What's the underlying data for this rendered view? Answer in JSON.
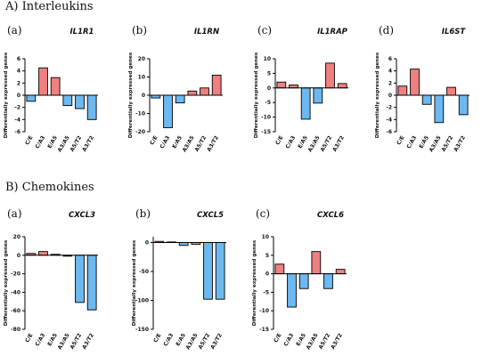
{
  "sections": [
    {
      "title": "A) Interleukins"
    },
    {
      "title": "B) Chemokines"
    }
  ],
  "colors": {
    "positive": "#f07f7f",
    "negative": "#6cb8f0",
    "stroke": "#000000"
  },
  "chart_data": [
    {
      "type": "bar",
      "section": "A) Interleukins",
      "panel": "(a)",
      "title": "IL1R1",
      "ylabel": "Differentially expressed genes",
      "categories": [
        "C/E",
        "C/A3",
        "E/A5",
        "A3/A5",
        "A5/T2",
        "A3/T2"
      ],
      "values": [
        -1,
        4.5,
        2.9,
        -1.7,
        -2.2,
        -4
      ],
      "ylim": [
        -6,
        6
      ],
      "yticks": [
        -6,
        -4,
        -2,
        0,
        2,
        4,
        6
      ]
    },
    {
      "type": "bar",
      "section": "A) Interleukins",
      "panel": "(b)",
      "title": "IL1RN",
      "ylabel": "Differentially expressed genes",
      "categories": [
        "C/E",
        "C/A3",
        "E/A5",
        "A3/A5",
        "A5/T2",
        "A3/T2"
      ],
      "values": [
        -1.5,
        -17.8,
        -4.2,
        2.3,
        4,
        11
      ],
      "ylim": [
        -20,
        20
      ],
      "yticks": [
        -20,
        -10,
        0,
        10,
        20
      ]
    },
    {
      "type": "bar",
      "section": "A) Interleukins",
      "panel": "(c)",
      "title": "IL1RAP",
      "ylabel": "Differentially expressed genes",
      "categories": [
        "C/E",
        "C/A3",
        "E/A5",
        "A3/A5",
        "A5/T2",
        "A3/T2"
      ],
      "values": [
        2,
        1,
        -10.7,
        -5.2,
        8.5,
        1.5
      ],
      "ylim": [
        -15,
        10
      ],
      "yticks": [
        -15,
        -10,
        -5,
        0,
        5,
        10
      ]
    },
    {
      "type": "bar",
      "section": "A) Interleukins",
      "panel": "(d)",
      "title": "IL6ST",
      "ylabel": "Differentially expressed genes",
      "categories": [
        "C/E",
        "C/A3",
        "E/A5",
        "A3/A5",
        "A5/T2",
        "A3/T2"
      ],
      "values": [
        1.5,
        4.3,
        -1.5,
        -4.5,
        1.3,
        -3.2
      ],
      "ylim": [
        -6,
        6
      ],
      "yticks": [
        -6,
        -4,
        -2,
        0,
        2,
        4,
        6
      ]
    },
    {
      "type": "bar",
      "section": "B) Chemokines",
      "panel": "(a)",
      "title": "CXCL3",
      "ylabel": "Differentially expressed genes",
      "categories": [
        "C/E",
        "C/A3",
        "E/A5",
        "A3/A5",
        "A5/T2",
        "A3/T2"
      ],
      "values": [
        2,
        4,
        1,
        -1,
        -51,
        -59
      ],
      "ylim": [
        -80,
        20
      ],
      "yticks": [
        -80,
        -60,
        -40,
        -20,
        0,
        20
      ]
    },
    {
      "type": "bar",
      "section": "B) Chemokines",
      "panel": "(b)",
      "title": "CXCL5",
      "ylabel": "Differentially expressed genes",
      "categories": [
        "C/E",
        "C/A3",
        "E/A5",
        "A3/A5",
        "A5/T2",
        "A3/T2"
      ],
      "values": [
        2,
        1,
        -5,
        -3,
        -98,
        -98
      ],
      "ylim": [
        -150,
        10
      ],
      "yticks": [
        -150,
        -100,
        -50,
        0
      ]
    },
    {
      "type": "bar",
      "section": "B) Chemokines",
      "panel": "(c)",
      "title": "CXCL6",
      "ylabel": "Differentially expressed genes",
      "categories": [
        "C/E",
        "C/A3",
        "E/A5",
        "A3/A5",
        "A5/T2",
        "A3/T2"
      ],
      "values": [
        2.6,
        -9,
        -4,
        6,
        -4,
        1.2
      ],
      "ylim": [
        -15,
        10
      ],
      "yticks": [
        -15,
        -10,
        -5,
        0,
        5,
        10
      ]
    }
  ]
}
